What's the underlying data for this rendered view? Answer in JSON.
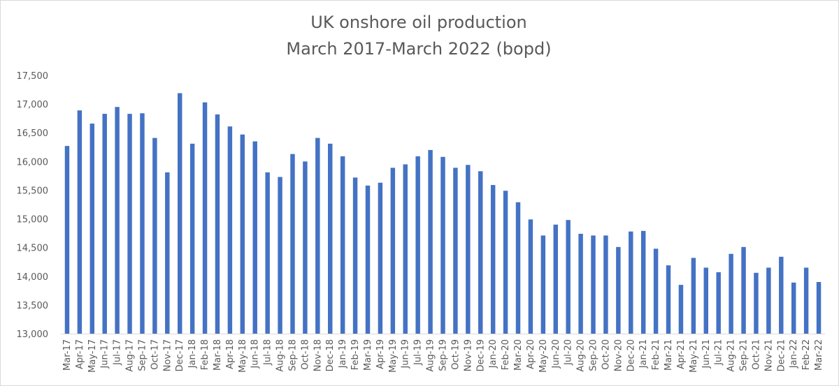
{
  "chart_data": {
    "type": "bar",
    "title": "UK onshore oil production",
    "subtitle": "March 2017-March 2022 (bopd)",
    "xlabel": "",
    "ylabel": "",
    "ylim": [
      13000,
      17500
    ],
    "yticks": [
      "13,000",
      "13,500",
      "14,000",
      "14,500",
      "15,000",
      "15,500",
      "16,000",
      "16,500",
      "17,000",
      "17,500"
    ],
    "ytick_values": [
      13000,
      13500,
      14000,
      14500,
      15000,
      15500,
      16000,
      16500,
      17000,
      17500
    ],
    "grid": false,
    "legend": "none",
    "bar_color": "#4472c4",
    "categories": [
      "Mar-17",
      "Apr-17",
      "May-17",
      "Jun-17",
      "Jul-17",
      "Aug-17",
      "Sep-17",
      "Oct-17",
      "Nov-17",
      "Dec-17",
      "Jan-18",
      "Feb-18",
      "Mar-18",
      "Apr-18",
      "May-18",
      "Jun-18",
      "Jul-18",
      "Aug-18",
      "Sep-18",
      "Oct-18",
      "Nov-18",
      "Dec-18",
      "Jan-19",
      "Feb-19",
      "Mar-19",
      "Apr-19",
      "May-19",
      "Jun-19",
      "Jul-19",
      "Aug-19",
      "Sep-19",
      "Oct-19",
      "Nov-19",
      "Dec-19",
      "Jan-20",
      "Feb-20",
      "Mar-20",
      "Apr-20",
      "May-20",
      "Jun-20",
      "Jul-20",
      "Aug-20",
      "Sep-20",
      "Oct-20",
      "Nov-20",
      "Dec-20",
      "Jan-21",
      "Feb-21",
      "Mar-21",
      "Apr-21",
      "May-21",
      "Jun-21",
      "Jul-21",
      "Aug-21",
      "Sep-21",
      "Oct-21",
      "Nov-21",
      "Dec-21",
      "Jan-22",
      "Feb-22",
      "Mar-22"
    ],
    "values": [
      16270,
      16890,
      16660,
      16830,
      16950,
      16830,
      16840,
      16410,
      15810,
      17190,
      16310,
      17030,
      16820,
      16610,
      16470,
      16350,
      15810,
      15730,
      16130,
      16000,
      16410,
      16310,
      16090,
      15720,
      15580,
      15630,
      15890,
      15950,
      16090,
      16200,
      16080,
      15890,
      15940,
      15830,
      15590,
      15490,
      15290,
      14990,
      14710,
      14900,
      14980,
      14740,
      14710,
      14710,
      14510,
      14780,
      14790,
      14480,
      14190,
      13850,
      14320,
      14150,
      14070,
      14390,
      14510,
      14060,
      14150,
      14340,
      13890,
      14150,
      13900
    ]
  }
}
